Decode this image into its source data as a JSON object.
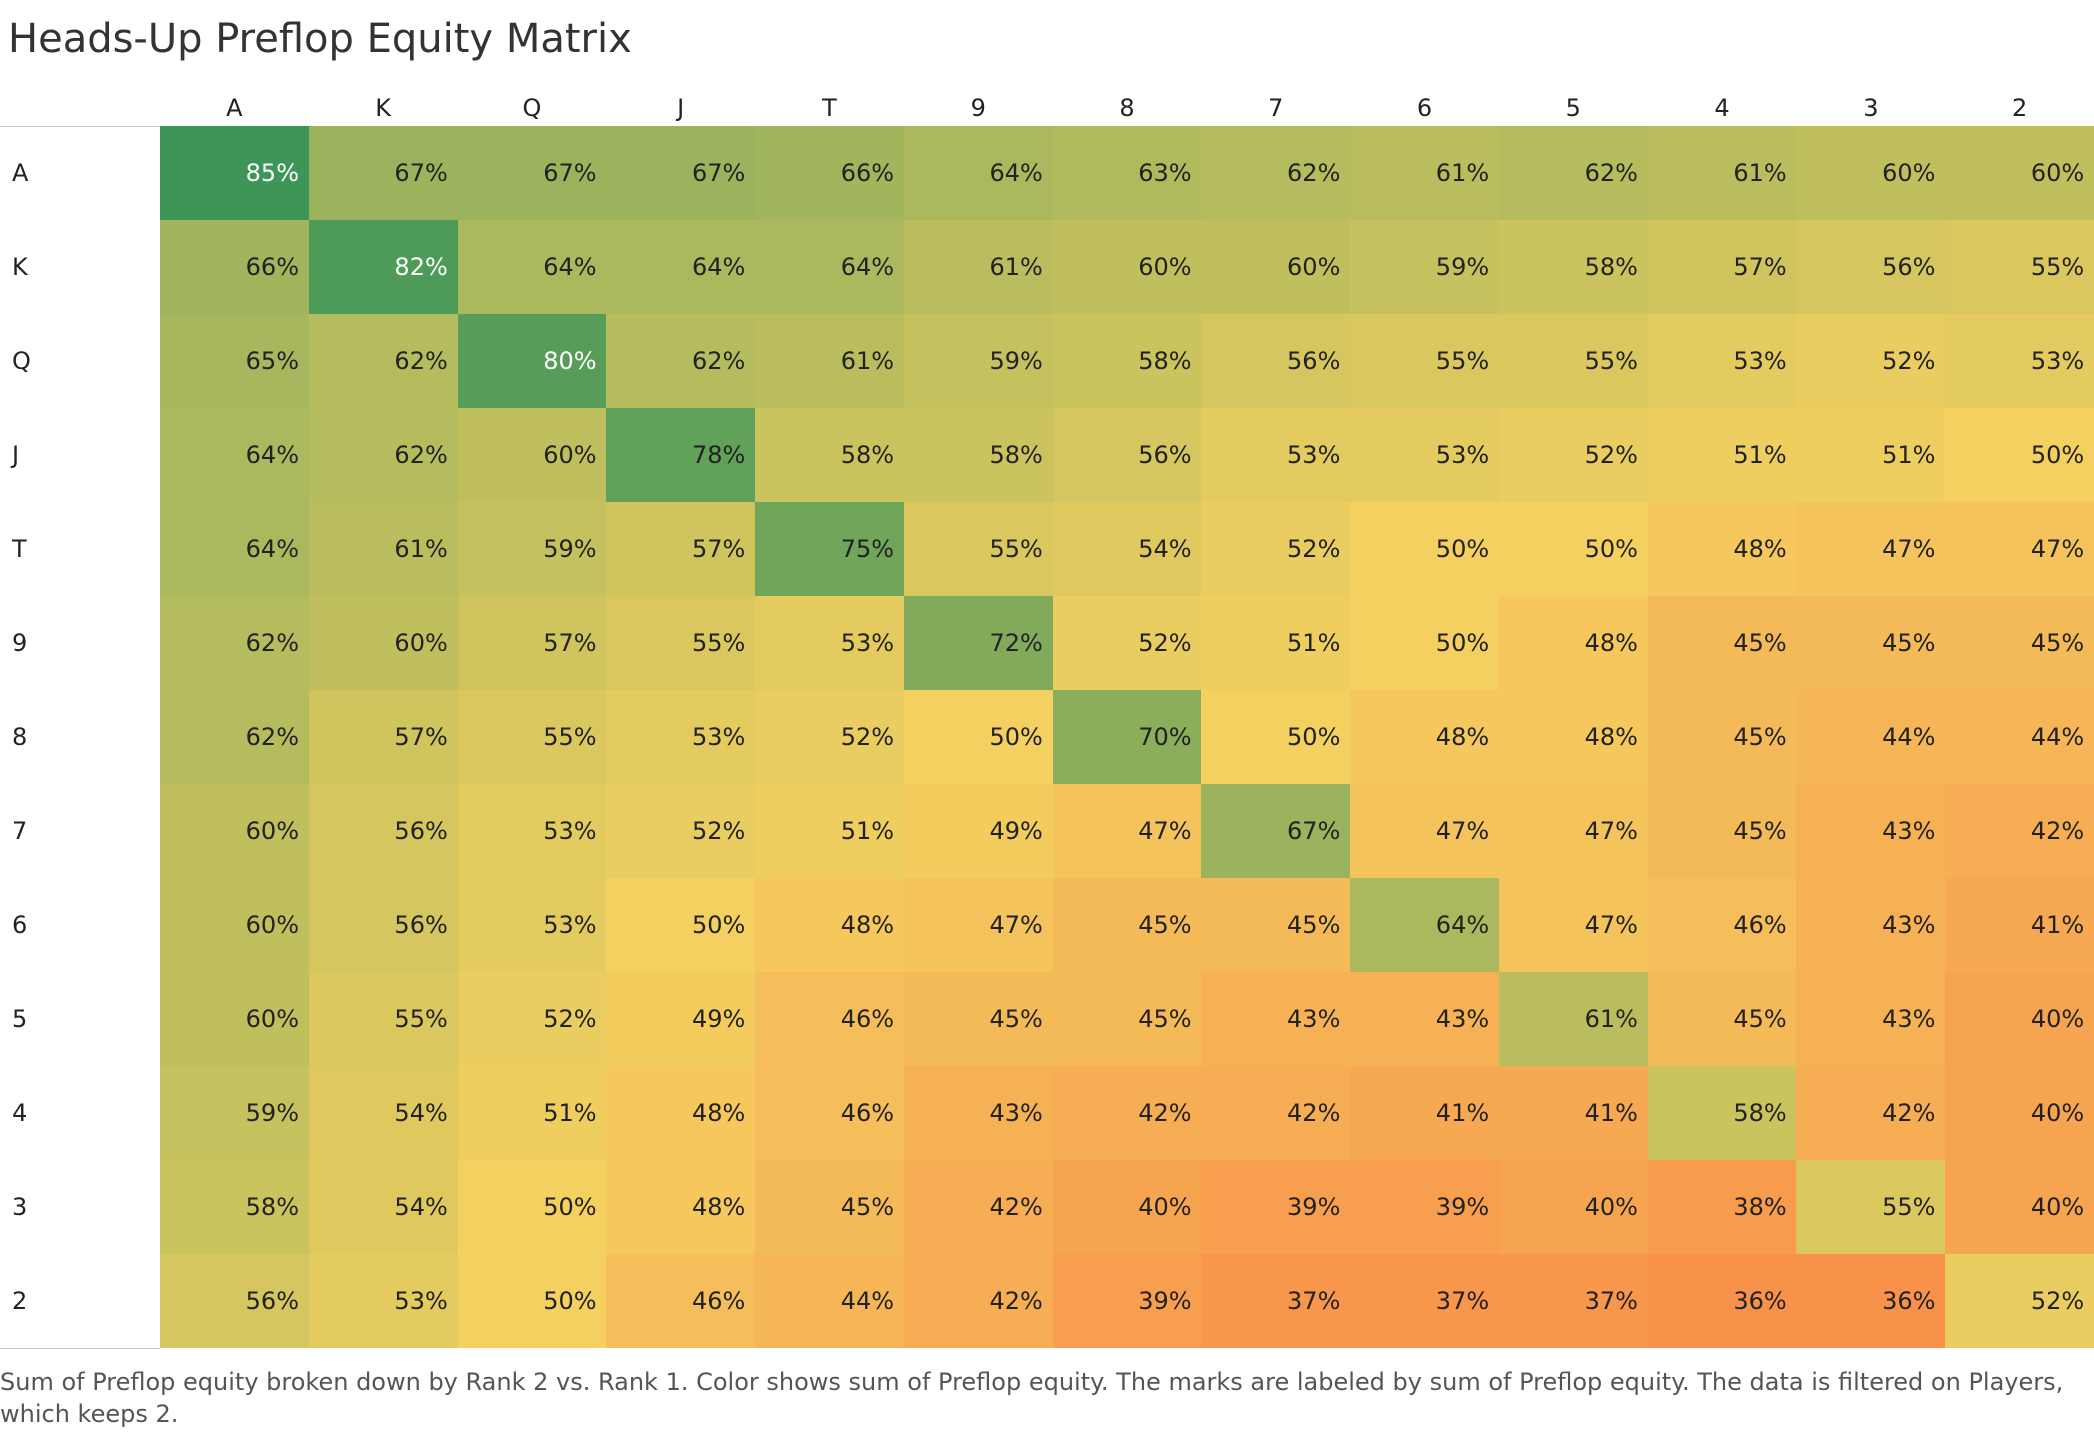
{
  "title": "Heads-Up Preflop Equity Matrix",
  "caption": "Sum of Preflop equity broken down by Rank 2 vs. Rank 1.  Color shows sum of Preflop equity.  The marks are labeled by sum of Preflop equity. The data is filtered on Players, which keeps 2.",
  "chart_data": {
    "type": "heatmap",
    "title": "Heads-Up Preflop Equity Matrix",
    "columns": [
      "A",
      "K",
      "Q",
      "J",
      "T",
      "9",
      "8",
      "7",
      "6",
      "5",
      "4",
      "3",
      "2"
    ],
    "rows": [
      "A",
      "K",
      "Q",
      "J",
      "T",
      "9",
      "8",
      "7",
      "6",
      "5",
      "4",
      "3",
      "2"
    ],
    "values": [
      [
        85,
        67,
        67,
        67,
        66,
        64,
        63,
        62,
        61,
        62,
        61,
        60,
        60
      ],
      [
        66,
        82,
        64,
        64,
        64,
        61,
        60,
        60,
        59,
        58,
        57,
        56,
        55
      ],
      [
        65,
        62,
        80,
        62,
        61,
        59,
        58,
        56,
        55,
        55,
        53,
        52,
        53
      ],
      [
        64,
        62,
        60,
        78,
        58,
        58,
        56,
        53,
        53,
        52,
        51,
        51,
        50
      ],
      [
        64,
        61,
        59,
        57,
        75,
        55,
        54,
        52,
        50,
        50,
        48,
        47,
        47
      ],
      [
        62,
        60,
        57,
        55,
        53,
        72,
        52,
        51,
        50,
        48,
        45,
        45,
        45
      ],
      [
        62,
        57,
        55,
        53,
        52,
        50,
        70,
        50,
        48,
        48,
        45,
        44,
        44
      ],
      [
        60,
        56,
        53,
        52,
        51,
        49,
        47,
        67,
        47,
        47,
        45,
        43,
        42
      ],
      [
        60,
        56,
        53,
        50,
        48,
        47,
        45,
        45,
        64,
        47,
        46,
        43,
        41
      ],
      [
        60,
        55,
        52,
        49,
        46,
        45,
        45,
        43,
        43,
        61,
        45,
        43,
        40
      ],
      [
        59,
        54,
        51,
        48,
        46,
        43,
        42,
        42,
        41,
        41,
        58,
        42,
        40
      ],
      [
        58,
        54,
        50,
        48,
        45,
        42,
        40,
        39,
        39,
        40,
        38,
        55,
        40
      ],
      [
        56,
        53,
        50,
        46,
        44,
        42,
        39,
        37,
        37,
        37,
        36,
        36,
        52
      ]
    ],
    "value_suffix": "%",
    "color_scale": {
      "low": "#f8924a",
      "mid": "#f4d060",
      "high": "#3d9558",
      "domain": [
        36,
        85
      ]
    }
  }
}
